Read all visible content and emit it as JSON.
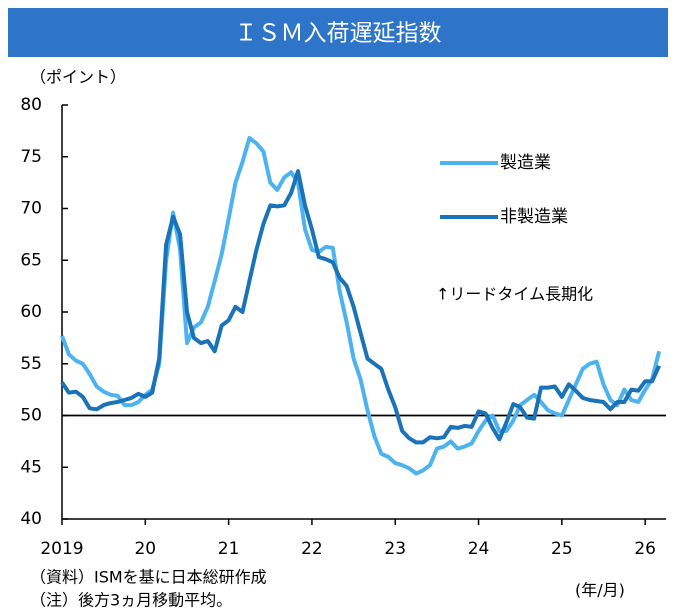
{
  "chart_data": {
    "type": "line",
    "title": "ＩＳＭ入荷遅延指数",
    "y_label": "（ポイント）",
    "x_label": "(年/月)",
    "source": "（資料）ISMを基に日本総研作成",
    "note": "（注）後方3ヵ月移動平均。",
    "annotation": "↑リードタイム長期化",
    "reference_line": 50,
    "xlim": [
      2019,
      2026.25
    ],
    "xticks": [
      {
        "value": 2019,
        "label": "2019"
      },
      {
        "value": 2020,
        "label": "20"
      },
      {
        "value": 2021,
        "label": "21"
      },
      {
        "value": 2022,
        "label": "22"
      },
      {
        "value": 2023,
        "label": "23"
      },
      {
        "value": 2024,
        "label": "24"
      },
      {
        "value": 2025,
        "label": "25"
      },
      {
        "value": 2026,
        "label": "26"
      }
    ],
    "ylim": [
      40,
      80
    ],
    "yticks": [
      40,
      45,
      50,
      55,
      60,
      65,
      70,
      75,
      80
    ],
    "x": [
      2019,
      2019.083,
      2019.167,
      2019.25,
      2019.333,
      2019.417,
      2019.5,
      2019.583,
      2019.667,
      2019.75,
      2019.833,
      2019.917,
      2020,
      2020.083,
      2020.167,
      2020.25,
      2020.333,
      2020.417,
      2020.5,
      2020.583,
      2020.667,
      2020.75,
      2020.833,
      2020.917,
      2021,
      2021.083,
      2021.167,
      2021.25,
      2021.333,
      2021.417,
      2021.5,
      2021.583,
      2021.667,
      2021.75,
      2021.833,
      2021.917,
      2022,
      2022.083,
      2022.167,
      2022.25,
      2022.333,
      2022.417,
      2022.5,
      2022.583,
      2022.667,
      2022.75,
      2022.833,
      2022.917,
      2023,
      2023.083,
      2023.167,
      2023.25,
      2023.333,
      2023.417,
      2023.5,
      2023.583,
      2023.667,
      2023.75,
      2023.833,
      2023.917,
      2024,
      2024.083,
      2024.167,
      2024.25,
      2024.333,
      2024.417,
      2024.5,
      2024.583,
      2024.667,
      2024.75,
      2024.833,
      2024.917,
      2025,
      2025.083,
      2025.167,
      2025.25,
      2025.333,
      2025.417,
      2025.5,
      2025.583,
      2025.667,
      2025.75,
      2025.833,
      2025.917,
      2026,
      2026.083,
      2026.167
    ],
    "series": [
      {
        "name": "製造業",
        "color": "#4db3f0",
        "values": [
          57.7,
          55.9,
          55.3,
          55,
          54,
          52.8,
          52.3,
          52,
          51.9,
          51,
          51,
          51.3,
          52,
          52.5,
          55,
          65,
          69.6,
          66,
          57,
          58.5,
          59,
          60.5,
          63,
          65.6,
          69,
          72.5,
          74.5,
          76.8,
          76.3,
          75.5,
          72.5,
          71.8,
          73,
          73.5,
          72.5,
          68,
          66,
          65.8,
          66.3,
          66.2,
          62,
          59,
          55.5,
          53.5,
          50.5,
          48,
          46.3,
          46,
          45.4,
          45.2,
          44.9,
          44.4,
          44.7,
          45.2,
          46.8,
          47,
          47.5,
          46.8,
          47,
          47.3,
          48.5,
          49.5,
          50,
          48.5,
          48.5,
          49.5,
          51,
          51.5,
          52,
          51.3,
          50.5,
          50.2,
          50,
          51.5,
          53,
          54.5,
          55,
          55.2,
          53,
          51.5,
          51,
          52.5,
          51.5,
          51.3,
          52.5,
          53.5,
          56.2
        ]
      },
      {
        "name": "非製造業",
        "color": "#1a73b8",
        "values": [
          53.2,
          52.2,
          52.3,
          51.8,
          50.7,
          50.6,
          51,
          51.2,
          51.3,
          51.5,
          51.7,
          52.1,
          51.8,
          52.2,
          55.5,
          66.5,
          69.2,
          67.5,
          60,
          57.5,
          57,
          57.2,
          56.2,
          58.7,
          59.2,
          60.5,
          60,
          63,
          66,
          68.5,
          70.3,
          70.2,
          70.3,
          71.5,
          73.6,
          70.3,
          68,
          65.3,
          65.1,
          64.8,
          63.3,
          62.5,
          60.5,
          58,
          55.5,
          55,
          54.5,
          52.5,
          50.8,
          48.5,
          47.8,
          47.4,
          47.4,
          47.9,
          47.8,
          47.9,
          48.9,
          48.8,
          49,
          48.9,
          50.4,
          50.2,
          48.8,
          47.7,
          49.3,
          51.1,
          50.8,
          49.8,
          49.7,
          52.7,
          52.7,
          52.8,
          51.8,
          53,
          52.4,
          51.7,
          51.5,
          51.4,
          51.3,
          50.6,
          51.3,
          51.3,
          52.5,
          52.4,
          53.3,
          53.3,
          54.8
        ]
      }
    ]
  }
}
